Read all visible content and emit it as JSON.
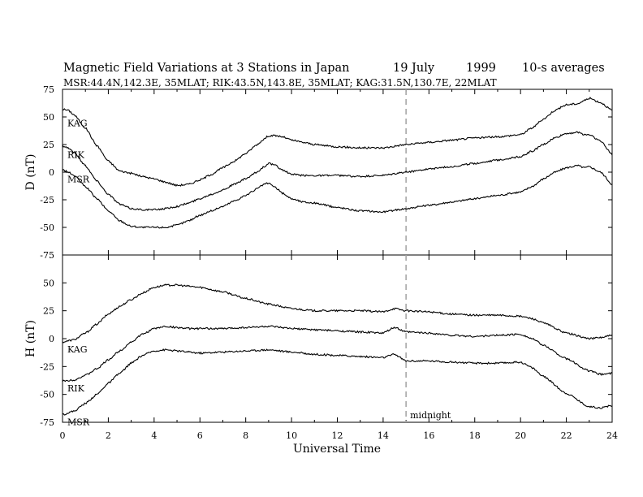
{
  "chart_data": {
    "type": "line",
    "title": "Magnetic Field Variations at 3 Stations in Japan",
    "title_date": "19 July",
    "title_year": "1999",
    "title_note": "10-s averages",
    "subtitle": "MSR:44.4N,142.3E, 35MLAT;  RIK:43.5N,143.8E, 35MLAT;  KAG:31.5N,130.7E, 22MLAT",
    "xlabel": "Universal Time",
    "xlim": [
      0,
      24
    ],
    "x_ticks": [
      "0",
      "2",
      "4",
      "6",
      "8",
      "10",
      "12",
      "14",
      "16",
      "18",
      "20",
      "22",
      "24"
    ],
    "grid": false,
    "vline": {
      "x": 15,
      "label": "midnight",
      "color": "#a0a0a0",
      "style": "dashed"
    },
    "line_color": "#000000",
    "panels": [
      {
        "id": "D",
        "ylabel": "D (nT)",
        "ylim": [
          -75,
          75
        ],
        "y_ticks": [
          "75",
          "50",
          "25",
          "0",
          "-25",
          "-50",
          "-75"
        ],
        "series": [
          {
            "name": "KAG",
            "x": [
              0,
              0.25,
              0.5,
              1,
              1.5,
              2,
              2.5,
              3,
              3.5,
              4,
              4.5,
              5,
              5.5,
              6,
              6.5,
              7,
              7.5,
              8,
              8.5,
              8.8,
              9,
              9.3,
              9.6,
              10,
              10.5,
              11,
              12,
              13,
              14,
              15,
              16,
              17,
              18,
              19,
              20,
              20.5,
              21,
              21.5,
              22,
              22.5,
              22.8,
              23,
              23.5,
              24
            ],
            "y": [
              57,
              56,
              52,
              40,
              24,
              10,
              1,
              -1,
              -4,
              -6,
              -9,
              -12,
              -11,
              -7,
              -2,
              4,
              10,
              17,
              25,
              30,
              33,
              33,
              32,
              29,
              27,
              25,
              23,
              22,
              22,
              25,
              27,
              29,
              31,
              32,
              34,
              40,
              48,
              56,
              61,
              62,
              65,
              67,
              63,
              56
            ]
          },
          {
            "name": "RIK",
            "x": [
              0,
              0.25,
              0.5,
              1,
              1.5,
              2,
              2.5,
              3,
              3.5,
              4,
              4.5,
              5,
              5.5,
              6,
              6.5,
              7,
              7.5,
              8,
              8.5,
              8.8,
              9,
              9.3,
              9.6,
              10,
              10.5,
              11,
              12,
              13,
              14,
              15,
              16,
              17,
              18,
              19,
              20,
              20.5,
              21,
              21.5,
              22,
              22.5,
              22.8,
              23,
              23.5,
              24
            ],
            "y": [
              24,
              22,
              18,
              6,
              -8,
              -20,
              -29,
              -33,
              -34,
              -34,
              -33,
              -31,
              -28,
              -24,
              -20,
              -16,
              -11,
              -6,
              0,
              5,
              8,
              6,
              2,
              -2,
              -3,
              -3,
              -3,
              -4,
              -3,
              0,
              3,
              5,
              8,
              11,
              14,
              19,
              25,
              31,
              35,
              36,
              34,
              34,
              28,
              16
            ]
          },
          {
            "name": "MSR",
            "x": [
              0,
              0.25,
              0.5,
              1,
              1.5,
              2,
              2.5,
              3,
              3.5,
              4,
              4.5,
              5,
              5.5,
              6,
              6.5,
              7,
              7.5,
              8,
              8.5,
              8.8,
              9,
              9.3,
              9.6,
              10,
              10.5,
              11,
              12,
              13,
              14,
              15,
              16,
              17,
              18,
              19,
              20,
              20.5,
              21,
              21.5,
              22,
              22.5,
              22.8,
              23,
              23.5,
              24
            ],
            "y": [
              2,
              0,
              -3,
              -13,
              -24,
              -35,
              -44,
              -49,
              -50,
              -50,
              -50,
              -48,
              -44,
              -39,
              -35,
              -31,
              -26,
              -21,
              -15,
              -11,
              -10,
              -14,
              -19,
              -24,
              -27,
              -28,
              -32,
              -35,
              -36,
              -33,
              -30,
              -27,
              -24,
              -21,
              -18,
              -13,
              -6,
              0,
              4,
              6,
              4,
              5,
              0,
              -11
            ]
          }
        ]
      },
      {
        "id": "H",
        "ylabel": "H (nT)",
        "ylim": [
          -75,
          75
        ],
        "y_ticks": [
          "75",
          "50",
          "25",
          "0",
          "-25",
          "-50",
          "-75"
        ],
        "series": [
          {
            "name": "KAG",
            "x": [
              0,
              0.5,
              1,
              1.5,
              2,
              2.5,
              3,
              3.5,
              4,
              4.5,
              5,
              5.5,
              6,
              7,
              8,
              9,
              10,
              11,
              12,
              13,
              14,
              14.5,
              15,
              16,
              17,
              18,
              19,
              20,
              20.5,
              21,
              22,
              23,
              23.5,
              24
            ],
            "y": [
              -3,
              -1,
              5,
              13,
              22,
              29,
              35,
              41,
              46,
              48,
              48,
              47,
              46,
              42,
              36,
              31,
              27,
              25,
              25,
              25,
              24,
              27,
              25,
              24,
              22,
              21,
              21,
              20,
              18,
              14,
              5,
              0,
              1,
              3
            ]
          },
          {
            "name": "RIK",
            "x": [
              0,
              0.5,
              1,
              1.5,
              2,
              2.5,
              3,
              3.5,
              4,
              4.5,
              5,
              5.5,
              6,
              7,
              8,
              9,
              10,
              11,
              12,
              13,
              14,
              14.5,
              15,
              16,
              17,
              18,
              19,
              20,
              20.5,
              21,
              22,
              23,
              23.5,
              24
            ],
            "y": [
              -38,
              -37,
              -33,
              -27,
              -19,
              -11,
              -3,
              4,
              9,
              11,
              10,
              9,
              9,
              9,
              10,
              11,
              9,
              8,
              7,
              6,
              5,
              10,
              6,
              5,
              3,
              2,
              3,
              4,
              0,
              -6,
              -18,
              -29,
              -32,
              -31
            ]
          },
          {
            "name": "MSR",
            "x": [
              0,
              0.5,
              1,
              1.5,
              2,
              2.5,
              3,
              3.5,
              4,
              4.5,
              5,
              5.5,
              6,
              7,
              8,
              9,
              10,
              11,
              12,
              13,
              14,
              14.5,
              15,
              16,
              17,
              18,
              19,
              20,
              20.5,
              21,
              22,
              23,
              23.5,
              24
            ],
            "y": [
              -68,
              -65,
              -58,
              -50,
              -40,
              -31,
              -22,
              -15,
              -11,
              -10,
              -11,
              -12,
              -13,
              -12,
              -11,
              -10,
              -12,
              -14,
              -15,
              -16,
              -17,
              -14,
              -20,
              -20,
              -21,
              -22,
              -22,
              -21,
              -26,
              -34,
              -49,
              -61,
              -62,
              -60
            ]
          }
        ]
      }
    ]
  }
}
